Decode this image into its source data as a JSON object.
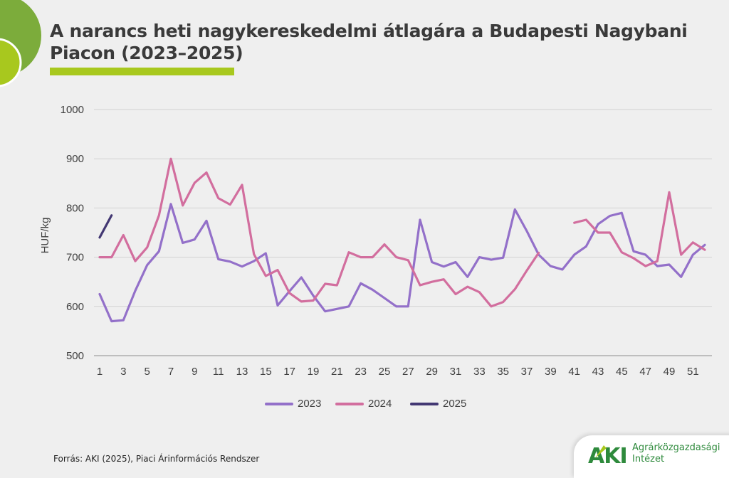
{
  "header": {
    "title_line1": "A narancs heti nagykereskedelmi átlagára a Budapesti Nagybani",
    "title_line2": "Piacon (2023–2025)",
    "accent_color": "#a8c81e",
    "circle_colors": [
      "#7cac3b",
      "#a8c81e"
    ]
  },
  "footer": {
    "source": "Forrás: AKI (2025), Piaci Árinformációs Rendszer",
    "logo_letters": "AKI",
    "logo_line1": "Agrárközgazdasági",
    "logo_line2": "Intézet"
  },
  "chart_data": {
    "type": "line",
    "ylabel": "HUF/kg",
    "xlabel": "",
    "ylim": [
      500,
      1000
    ],
    "yticks": [
      500,
      600,
      700,
      800,
      900,
      1000
    ],
    "xlim": [
      1,
      52
    ],
    "xticks": [
      1,
      3,
      5,
      7,
      9,
      11,
      13,
      15,
      17,
      19,
      21,
      23,
      25,
      27,
      29,
      31,
      33,
      35,
      37,
      39,
      41,
      43,
      45,
      47,
      49,
      51
    ],
    "grid": true,
    "legend_position": "bottom",
    "series": [
      {
        "name": "2023",
        "color": "#9370c9",
        "values": [
          625,
          570,
          572,
          632,
          684,
          712,
          808,
          729,
          736,
          774,
          696,
          691,
          681,
          692,
          708,
          602,
          631,
          659,
          622,
          590,
          595,
          600,
          647,
          634,
          617,
          600,
          600,
          776,
          690,
          681,
          690,
          660,
          700,
          695,
          699,
          797,
          753,
          705,
          682,
          675,
          705,
          722,
          767,
          784,
          790,
          712,
          705,
          682,
          685,
          660,
          705,
          725
        ]
      },
      {
        "name": "2024",
        "color": "#d26e9e",
        "values": [
          700,
          700,
          745,
          692,
          720,
          785,
          900,
          805,
          851,
          872,
          820,
          807,
          847,
          706,
          662,
          674,
          627,
          610,
          612,
          646,
          643,
          710,
          700,
          700,
          726,
          700,
          694,
          643,
          650,
          655,
          625,
          640,
          629,
          600,
          609,
          635,
          673,
          709,
          null,
          null,
          770,
          776,
          750,
          750,
          710,
          698,
          682,
          692,
          832,
          705,
          730,
          715
        ]
      },
      {
        "name": "2025",
        "color": "#433873",
        "values": [
          740,
          785
        ]
      }
    ]
  }
}
